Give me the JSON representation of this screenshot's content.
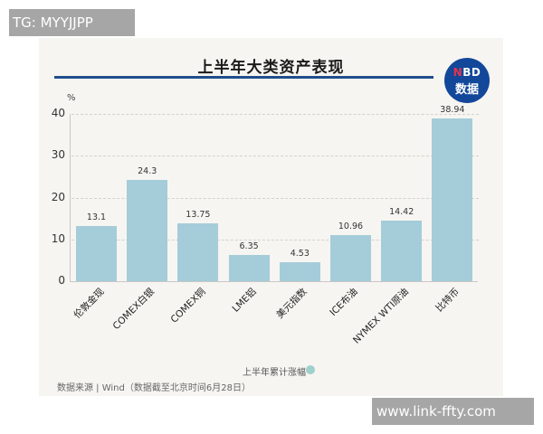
{
  "overlays": {
    "top_left": "TG: MYYJJPP",
    "bottom_right": "www.link-ffty.com"
  },
  "header": {
    "title": "上半年大类资产表现",
    "logo_line1_n": "N",
    "logo_line1_rest": "BD",
    "logo_line2": "数据"
  },
  "colors": {
    "bar": "#a5ccd9",
    "title_rule": "#1f4e8c",
    "logo_bg": "#12479a",
    "logo_accent": "#e4344a",
    "legend_dot": "#9fd0cc",
    "background": "#f7f5f1"
  },
  "chart_data": {
    "type": "bar",
    "title": "上半年大类资产表现",
    "xlabel": "",
    "ylabel": "%",
    "ylim": [
      0,
      40
    ],
    "yticks": [
      0,
      10,
      20,
      30,
      40
    ],
    "grid": true,
    "legend": [
      "上半年累计涨幅"
    ],
    "legend_position": "bottom-right",
    "categories": [
      "伦敦金现",
      "COMEX白银",
      "COMEX铜",
      "LME铝",
      "美元指数",
      "ICE布油",
      "NYMEX WTI原油",
      "比特币"
    ],
    "values": [
      13.1,
      24.3,
      13.75,
      6.35,
      4.53,
      10.96,
      14.42,
      38.94
    ],
    "value_labels": [
      "13.1",
      "24.3",
      "13.75",
      "6.35",
      "4.53",
      "10.96",
      "14.42",
      "38.94"
    ],
    "series": [
      {
        "name": "上半年累计涨幅",
        "values": [
          13.1,
          24.3,
          13.75,
          6.35,
          4.53,
          10.96,
          14.42,
          38.94
        ]
      }
    ]
  },
  "axis": {
    "unit": "%",
    "yticks": [
      "0",
      "10",
      "20",
      "30",
      "40"
    ]
  },
  "legend": {
    "label": "上半年累计涨幅"
  },
  "footer": {
    "source": "数据来源 | Wind（数据截至北京时间6月28日）"
  }
}
